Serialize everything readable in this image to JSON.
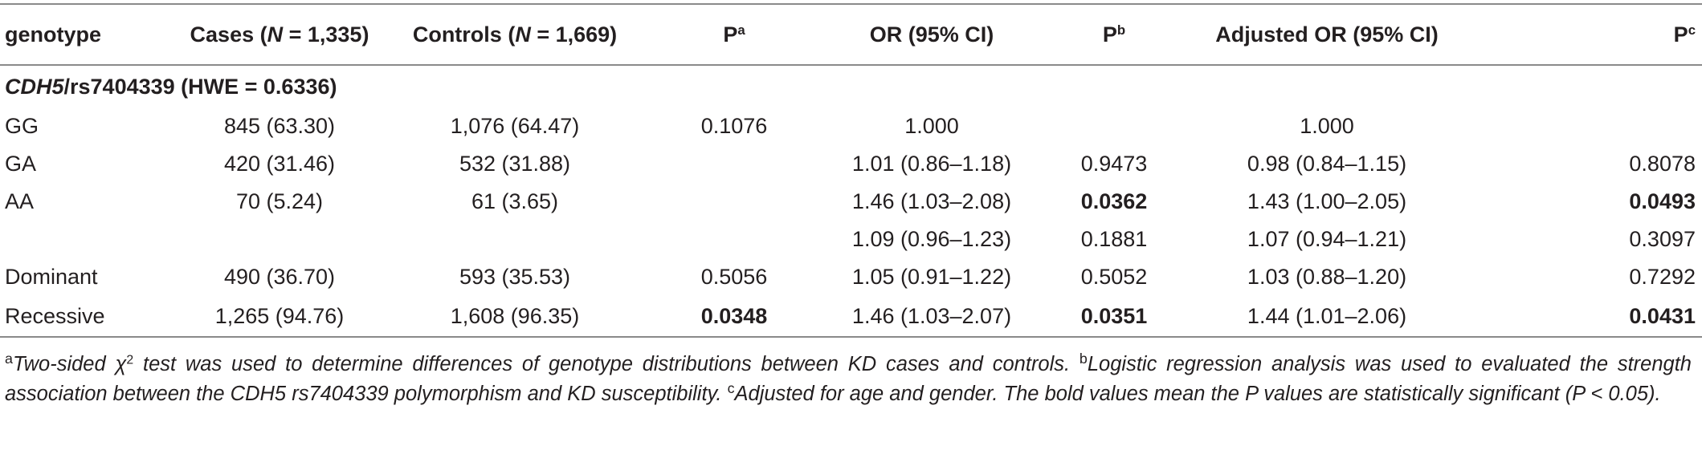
{
  "table": {
    "headers": {
      "genotype": "genotype",
      "cases_prefix": "Cases (",
      "cases_n": "N",
      "cases_suffix": " = 1,335)",
      "controls_prefix": "Controls (",
      "controls_n": "N",
      "controls_suffix": " = 1,669)",
      "p_a": "P",
      "p_a_sup": "a",
      "or": "OR (95% CI)",
      "p_b": "P",
      "p_b_sup": "b",
      "adj_or": "Adjusted OR (95% CI)",
      "p_c": "P",
      "p_c_sup": "c"
    },
    "section": {
      "gene": "CDH5",
      "rest": "/rs7404339 (HWE = 0.6336)"
    },
    "rows": [
      {
        "genotype": "GG",
        "cases": "845 (63.30)",
        "controls": "1,076 (64.47)",
        "pa": "0.1076",
        "or": "1.000",
        "pb": "",
        "adj_or": "1.000",
        "pc": ""
      },
      {
        "genotype": "GA",
        "cases": "420 (31.46)",
        "controls": "532 (31.88)",
        "pa": "",
        "or": "1.01 (0.86–1.18)",
        "pb": "0.9473",
        "adj_or": "0.98 (0.84–1.15)",
        "pc": "0.8078"
      },
      {
        "genotype": "AA",
        "cases": "70 (5.24)",
        "controls": "61 (3.65)",
        "pa": "",
        "or": "1.46 (1.03–2.08)",
        "pb": "0.0362",
        "adj_or": "1.43 (1.00–2.05)",
        "pc": "0.0493"
      },
      {
        "genotype": "",
        "cases": "",
        "controls": "",
        "pa": "",
        "or": "1.09 (0.96–1.23)",
        "pb": "0.1881",
        "adj_or": "1.07 (0.94–1.21)",
        "pc": "0.3097"
      },
      {
        "genotype": "Dominant",
        "cases": "490 (36.70)",
        "controls": "593 (35.53)",
        "pa": "0.5056",
        "or": "1.05 (0.91–1.22)",
        "pb": "0.5052",
        "adj_or": "1.03 (0.88–1.20)",
        "pc": "0.7292"
      },
      {
        "genotype": "Recessive",
        "cases": "1,265 (94.76)",
        "controls": "1,608 (96.35)",
        "pa": "0.0348",
        "or": "1.46 (1.03–2.07)",
        "pb": "0.0351",
        "adj_or": "1.44 (1.01–2.06)",
        "pc": "0.0431"
      }
    ]
  },
  "footnote": {
    "mark_a": "a",
    "text_a1": "Two-sided χ",
    "text_a_sup": "2",
    "text_a2": " test was used to determine differences of genotype distributions between KD cases and controls. ",
    "mark_b": "b",
    "text_b": "Logistic regression analysis was used to evaluated the strength association between the CDH5 rs7404339 polymorphism and KD susceptibility. ",
    "mark_c": "c",
    "text_c": "Adjusted for age and gender. The bold values mean the P values are statistically significant (P < 0.05)."
  }
}
